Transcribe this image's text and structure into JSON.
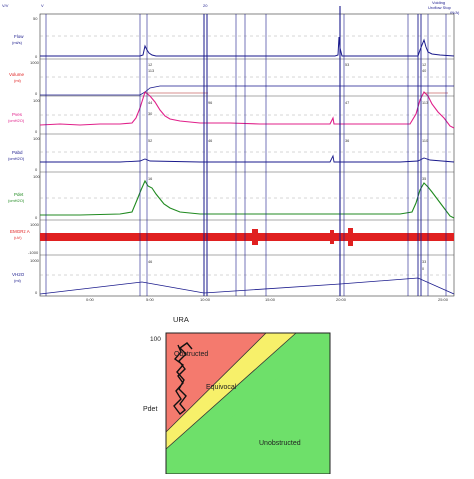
{
  "header": {
    "marker_voiding": "Voiding",
    "marker_uroflow_stop": "Uroflow Stop",
    "marker_note": "(N/A)",
    "event_label": "20"
  },
  "channels": [
    {
      "name": "Flow",
      "unit": "(ml/s)",
      "top_value": "50",
      "bottom_value": "0",
      "color": "#1a1a8c"
    },
    {
      "name": "Volume",
      "unit": "(ml)",
      "top_value": "1000",
      "bottom_value": "0",
      "color": "#1a1a8c"
    },
    {
      "name": "Pves",
      "unit": "(cmH2O)",
      "top_value": "100",
      "bottom_value": "0",
      "color": "#e0208a"
    },
    {
      "name": "Pabd",
      "unit": "(cmH2O)",
      "top_value": "100",
      "bottom_value": "0",
      "color": "#1a1a8c"
    },
    {
      "name": "Pdet",
      "unit": "(cmH2O)",
      "top_value": "100",
      "bottom_value": "0",
      "color": "#208a20"
    },
    {
      "name": "EMGRz A",
      "unit": "(uV)",
      "top_value": "1000",
      "bottom_value": "-1000",
      "color": "#e02020"
    },
    {
      "name": "VH2O",
      "unit": "(ml)",
      "top_value": "1000",
      "bottom_value": "0",
      "color": "#1a1a8c"
    }
  ],
  "time_axis": {
    "ticks": [
      "0:00",
      "5:00",
      "10:00",
      "15:00",
      "20:00",
      "25:00"
    ]
  },
  "value_labels": [
    "12",
    "113",
    "44",
    "30",
    "52",
    "16",
    "46",
    "96",
    "46",
    "53",
    "47",
    "36",
    "12",
    "40",
    "113",
    "110",
    "35",
    "33",
    "0"
  ],
  "ura": {
    "title": "URA",
    "ytick_top": "100",
    "ylabel": "Pdet",
    "regions": [
      {
        "name": "Obstructed",
        "color": "#f47a6e"
      },
      {
        "name": "Equivocal",
        "color": "#f7f06a"
      },
      {
        "name": "Unobstructed",
        "color": "#6ee06a"
      }
    ]
  }
}
